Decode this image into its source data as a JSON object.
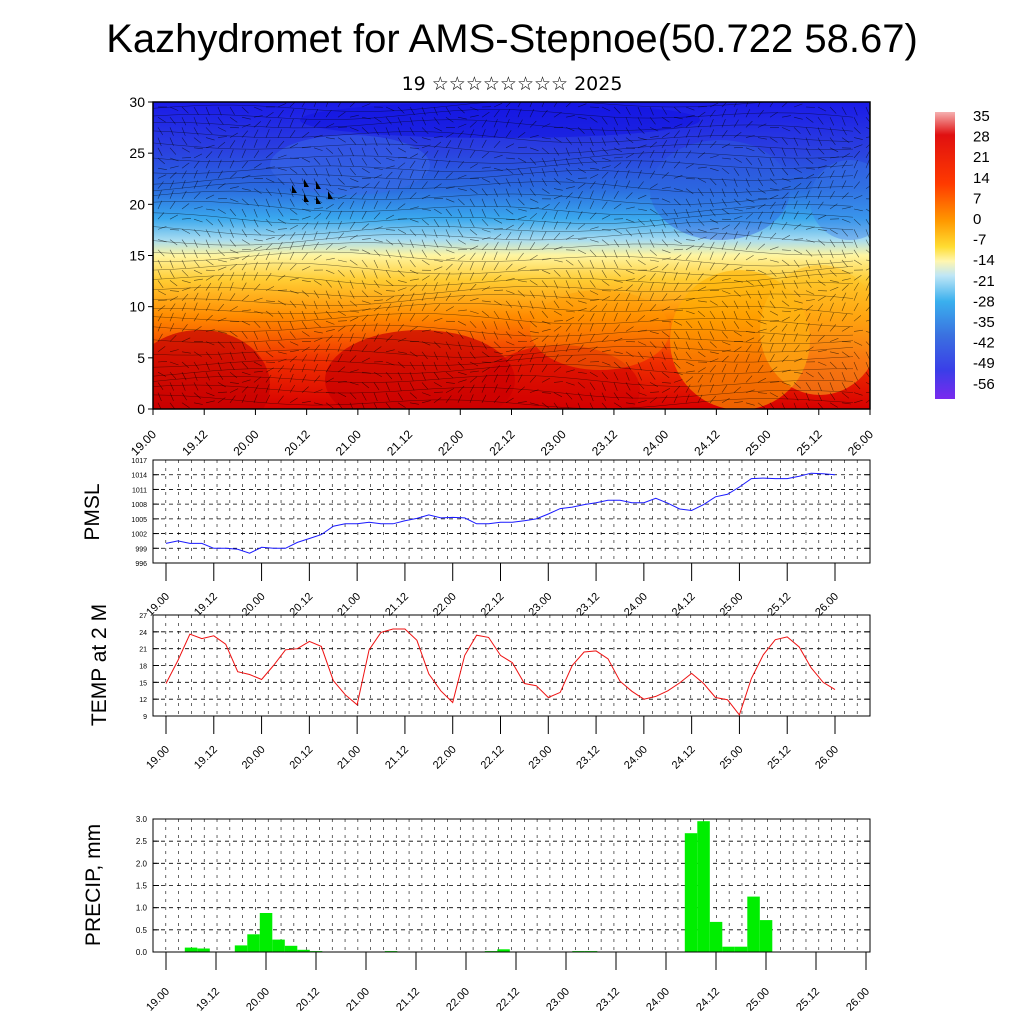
{
  "header": {
    "title": "Kazhydromet for AMS-Stepnoe(50.722 58.67)",
    "subtitle": "19 ☆☆☆☆☆☆☆☆ 2025"
  },
  "time_labels": [
    "19.00",
    "19.12",
    "20.00",
    "20.12",
    "21.00",
    "21.12",
    "22.00",
    "22.12",
    "23.00",
    "23.12",
    "24.00",
    "24.12",
    "25.00",
    "25.12",
    "26.00"
  ],
  "colors": {
    "pmsl_line": "#1a1aff",
    "temp_line": "#ee1111",
    "precip_bar": "#00ee00"
  },
  "chart_data": [
    {
      "type": "heatmap",
      "title": "",
      "xlabel": "",
      "ylabel": "",
      "ylim": [
        0,
        30
      ],
      "yticks": [
        "0",
        "5",
        "10",
        "15",
        "20",
        "25",
        "30"
      ],
      "colorbar": [
        "35",
        "28",
        "21",
        "14",
        "7",
        "0",
        "-7",
        "-14",
        "-21",
        "-28",
        "-35",
        "-42",
        "-49",
        "-56"
      ],
      "note_wind_barbs": true
    },
    {
      "type": "line",
      "ylabel": "PMSL",
      "ylim": [
        996,
        1017
      ],
      "yticks": [
        "996",
        "999",
        "1002",
        "1005",
        "1008",
        "1011",
        "1014",
        "1017"
      ],
      "series": [
        {
          "values": [
            1000,
            1000.5,
            1000,
            1000,
            999,
            999,
            998.8,
            998,
            999.2,
            999,
            999,
            1000.2,
            1001,
            1001.8,
            1003.5,
            1004,
            1004,
            1004.3,
            1004,
            1004,
            1004.6,
            1005.1,
            1005.8,
            1005.2,
            1005.3,
            1005.2,
            1004,
            1004,
            1004.3,
            1004.3,
            1004.6,
            1005,
            1006,
            1007.1,
            1007.4,
            1007.9,
            1008.3,
            1008.8,
            1008.8,
            1008.3,
            1008.3,
            1009.2,
            1008.2,
            1007,
            1006.7,
            1007.9,
            1009.5,
            1010,
            1011.5,
            1013.2,
            1013.3,
            1013.2,
            1013.2,
            1013.7,
            1014.3,
            1014.2,
            1014
          ]
        }
      ]
    },
    {
      "type": "line",
      "ylabel": "TEMP at 2 M",
      "ylim": [
        9,
        27
      ],
      "yticks": [
        "9",
        "12",
        "15",
        "18",
        "21",
        "24",
        "27"
      ],
      "series": [
        {
          "values": [
            14.8,
            18.9,
            23.6,
            22.8,
            23.3,
            21.8,
            16.9,
            16.4,
            15.5,
            18,
            20.8,
            21,
            22.3,
            21.4,
            15.3,
            12.8,
            11,
            20.8,
            23.9,
            24.5,
            24.5,
            22.5,
            16.5,
            13.5,
            11.4,
            19.8,
            23.4,
            23,
            19.8,
            18.5,
            14.8,
            14.4,
            12.3,
            13.2,
            18,
            20.4,
            20.6,
            19.2,
            15.2,
            13.4,
            12,
            12.5,
            13.5,
            14.9,
            16.6,
            14.8,
            12.3,
            11.9,
            9.2,
            15.7,
            19.9,
            22.6,
            23.1,
            21.3,
            17.6,
            15,
            13.7
          ]
        }
      ]
    },
    {
      "type": "bar",
      "ylabel": "PRECIP, mm",
      "ylim": [
        0,
        3
      ],
      "yticks": [
        "0.0",
        "0.5",
        "1.0",
        "1.5",
        "2.0",
        "2.5",
        "3.0"
      ],
      "values": [
        0,
        0,
        0.1,
        0.08,
        0,
        0,
        0.15,
        0.4,
        0.88,
        0.28,
        0.14,
        0.05,
        0.02,
        0,
        0,
        0,
        0,
        0,
        0.02,
        0,
        0,
        0,
        0,
        0,
        0,
        0,
        0.02,
        0.06,
        0,
        0,
        0,
        0,
        0,
        0.02,
        0.02,
        0,
        0,
        0,
        0,
        0,
        0,
        0,
        2.68,
        2.95,
        0.68,
        0.12,
        0.12,
        1.25,
        0.72,
        0,
        0,
        0,
        0,
        0,
        0,
        0,
        0
      ]
    }
  ]
}
